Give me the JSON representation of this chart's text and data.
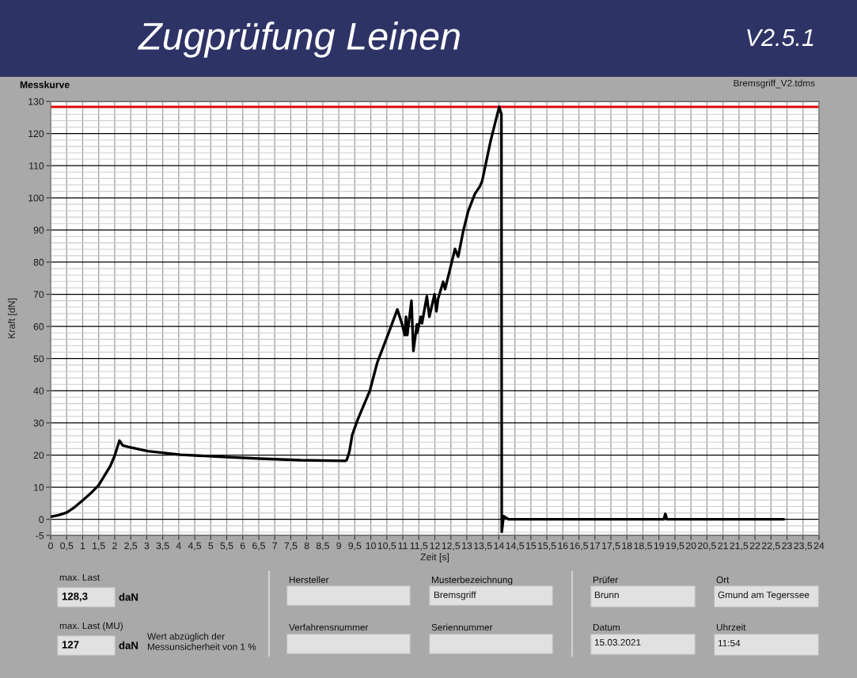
{
  "chart_data": [
    {
      "type": "other",
      "title": "Zugprüfung Leinen",
      "annotations": [
        "V2.5.1"
      ]
    },
    {
      "type": "line",
      "title": "Messkurve",
      "xlabel": "Zeit [s]",
      "ylabel": "Kraft [dN]",
      "annotations": [
        "Bremsgriff_V2.tdms"
      ],
      "x": [
        0,
        0.25,
        0.5,
        0.75,
        1,
        1.25,
        1.5,
        1.86,
        2.0,
        2.15,
        2.25,
        2.44,
        3.04,
        4.06,
        5.25,
        6.53,
        7.81,
        9.2,
        9.25,
        9.33,
        9.42,
        9.59,
        9.97,
        10.2,
        10.53,
        10.83,
        10.98,
        11.06,
        11.1,
        11.14,
        11.27,
        11.33,
        11.44,
        11.45,
        11.56,
        11.6,
        11.75,
        11.83,
        11.99,
        12.05,
        12.1,
        12.26,
        12.32,
        12.63,
        12.73,
        12.88,
        13.04,
        13.25,
        13.41,
        13.48,
        13.74,
        14.01,
        14.08,
        14.09,
        14.15,
        14.3,
        19.15,
        19.2,
        19.25,
        22.9
      ],
      "series": [
        {
          "color": "#000000",
          "values": [
            0.8,
            1.3,
            2.1,
            3.8,
            5.9,
            8.1,
            10.6,
            16.5,
            19.8,
            24.5,
            23.0,
            22.5,
            21.2,
            20.1,
            19.5,
            18.9,
            18.4,
            18.2,
            18.5,
            21.0,
            26.3,
            31.0,
            40.0,
            48.7,
            57.3,
            65.3,
            60.6,
            57.3,
            63.0,
            57.3,
            68.0,
            52.4,
            60.6,
            58.0,
            63.0,
            61.0,
            69.4,
            63.0,
            70.0,
            64.7,
            68.5,
            73.9,
            71.6,
            84.1,
            81.7,
            89.3,
            95.8,
            101.2,
            103.6,
            105.3,
            117.6,
            128.3,
            126.0,
            -3.9,
            1.0,
            0.0,
            0.0,
            1.7,
            0.0,
            0.0
          ]
        }
      ],
      "xlim": [
        0,
        24
      ],
      "ylim": [
        -5,
        130
      ],
      "xticks": [
        0,
        {
          "value": 0.5,
          "label": "0,5"
        },
        1,
        {
          "value": 1.5,
          "label": "1,5"
        },
        2,
        {
          "value": 2.5,
          "label": "2,5"
        },
        3,
        {
          "value": 3.5,
          "label": "3,5"
        },
        4,
        {
          "value": 4.5,
          "label": "4,5"
        },
        5,
        {
          "value": 5.5,
          "label": "5,5"
        },
        6,
        {
          "value": 6.5,
          "label": "6,5"
        },
        7,
        {
          "value": 7.5,
          "label": "7,5"
        },
        8,
        {
          "value": 8.5,
          "label": "8,5"
        },
        9,
        {
          "value": 9.5,
          "label": "9,5"
        },
        10,
        {
          "value": 10.5,
          "label": "10,5"
        },
        11,
        {
          "value": 11.5,
          "label": "11,5"
        },
        12,
        {
          "value": 12.5,
          "label": "12,5"
        },
        13,
        {
          "value": 13.5,
          "label": "13,5"
        },
        14,
        {
          "value": 14.5,
          "label": "14,5"
        },
        15,
        {
          "value": 15.5,
          "label": "15,5"
        },
        16,
        {
          "value": 16.5,
          "label": "16,5"
        },
        17,
        {
          "value": 17.5,
          "label": "17,5"
        },
        18,
        {
          "value": 18.5,
          "label": "18,5"
        },
        19,
        {
          "value": 19.5,
          "label": "19,5"
        },
        20,
        {
          "value": 20.5,
          "label": "20,5"
        },
        21,
        {
          "value": 21.5,
          "label": "21,5"
        },
        22,
        {
          "value": 22.5,
          "label": "22,5"
        },
        23,
        {
          "value": 23.5,
          "label": "23,5"
        },
        24
      ],
      "yticks": [
        -5,
        0,
        10,
        20,
        30,
        40,
        50,
        60,
        70,
        80,
        90,
        100,
        110,
        120,
        130
      ],
      "grid": true,
      "ref_lines": [
        {
          "axis": "y",
          "value": 128.3,
          "color": "#e00000"
        }
      ]
    },
    {
      "type": "other",
      "annotations": [
        "max. Last",
        "128,3",
        "daN",
        "max. Last (MU)",
        "127",
        "daN",
        "Wert abzüglich der\nMessunsicherheit von 1 %",
        "Hersteller",
        "Musterbezeichnung",
        "Bremsgriff",
        "Verfahrensnummer",
        "Seriennummer",
        "Prüfer",
        "Brunn",
        "Ort",
        "Gmund am Tegerssee",
        "Datum",
        "15.03.2021",
        "Uhrzeit",
        "11:54"
      ]
    }
  ]
}
